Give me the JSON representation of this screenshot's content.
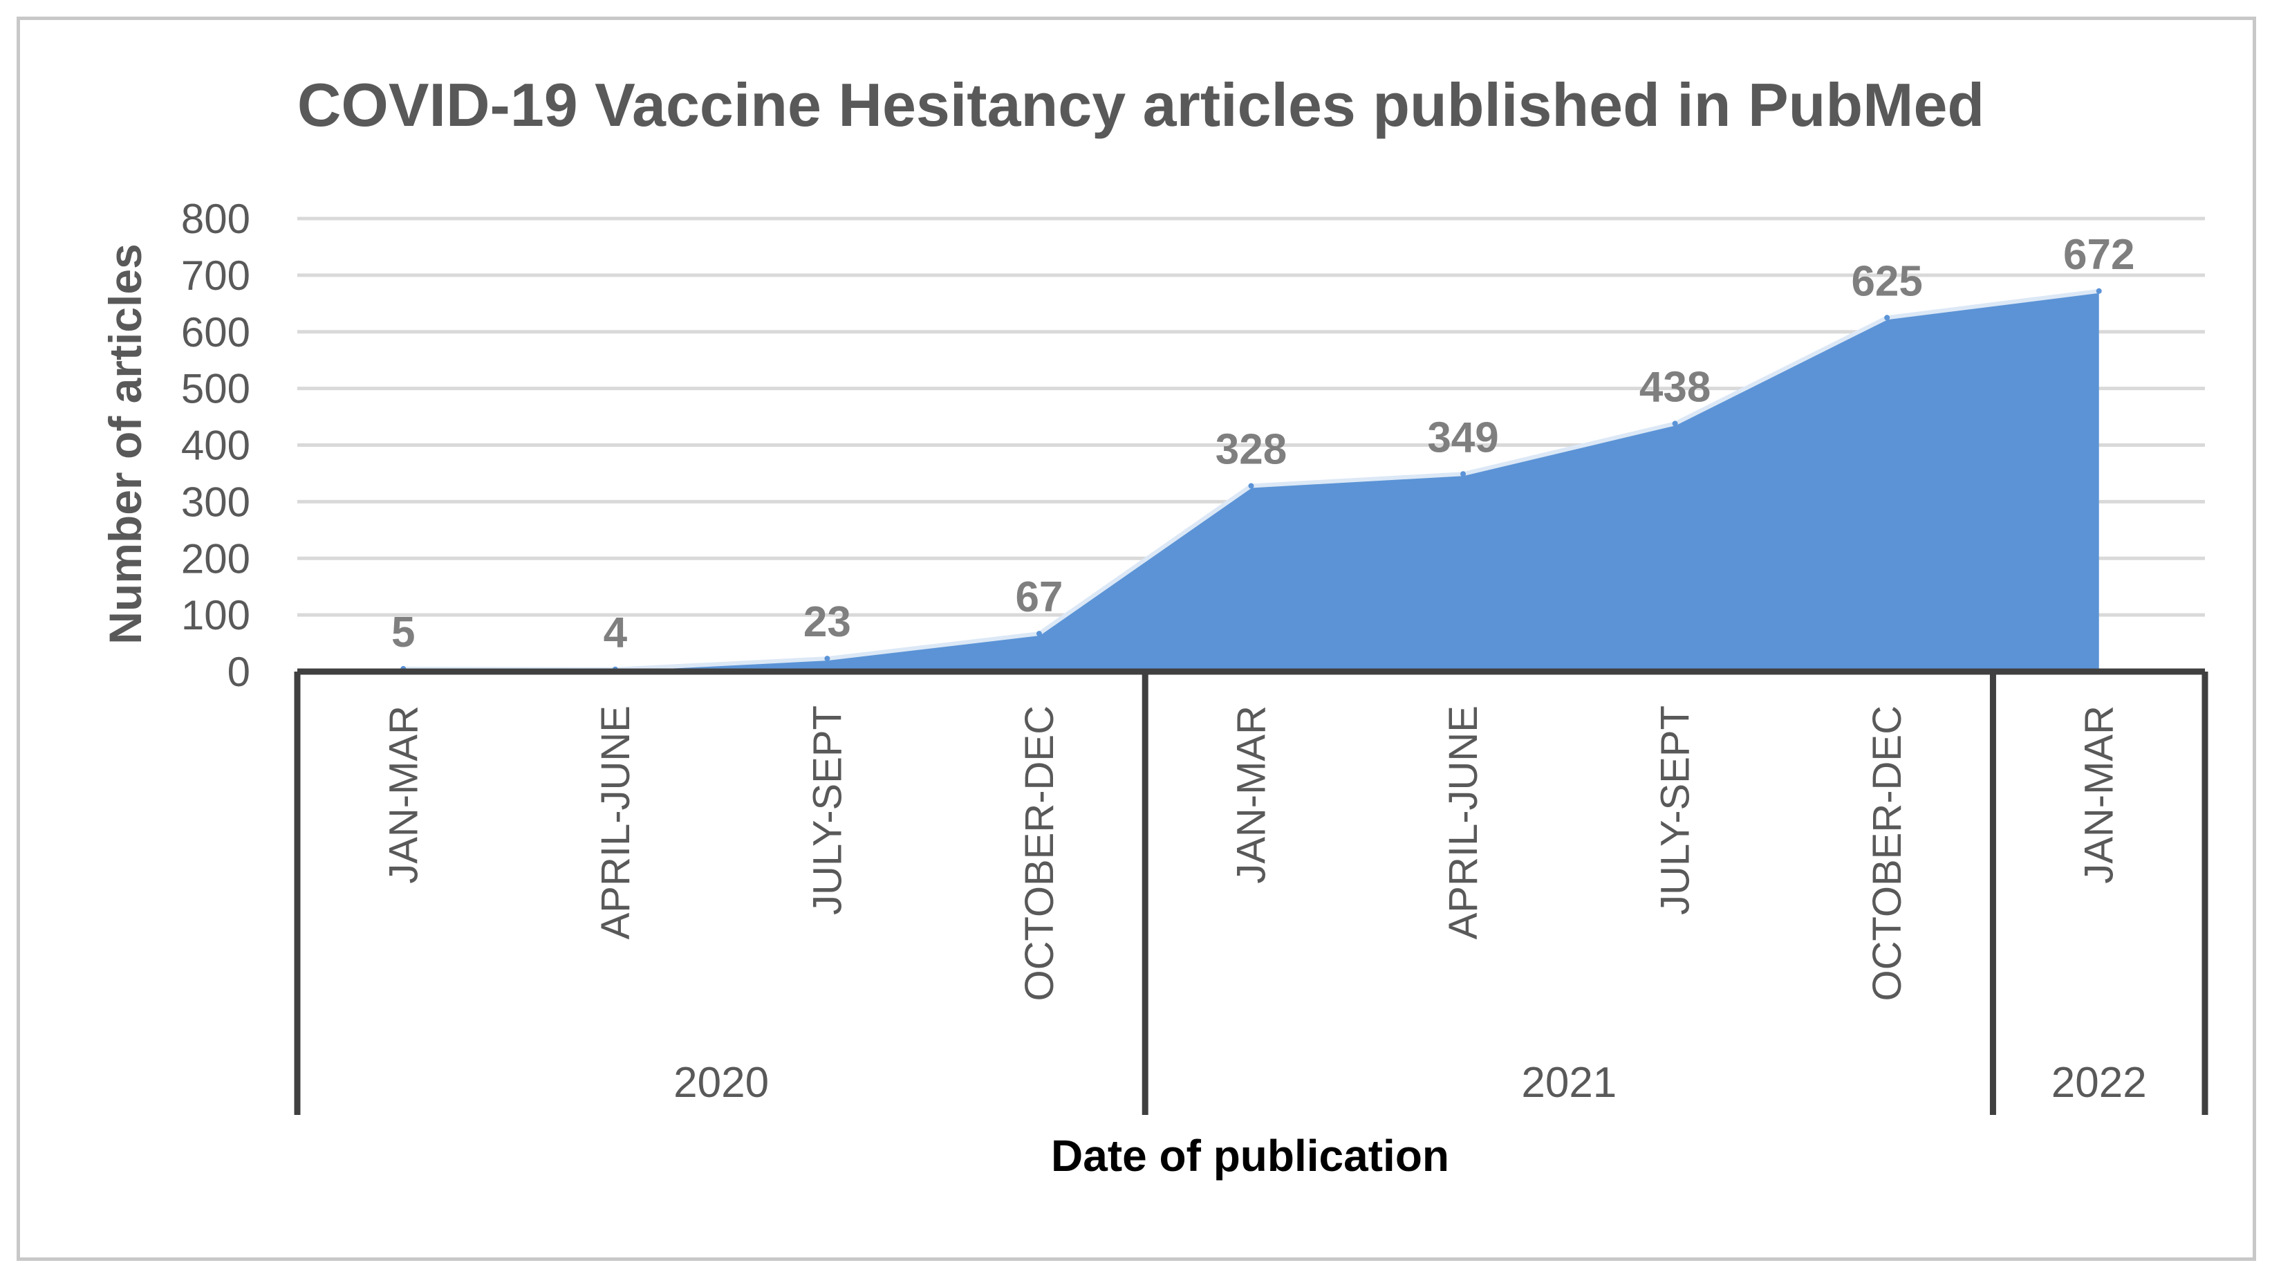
{
  "chart_data": {
    "type": "area",
    "title": "COVID-19 Vaccine Hesitancy articles published in PubMed",
    "xlabel": "Date of publication",
    "ylabel": "Number of articles",
    "categories": [
      "JAN-MAR",
      "APRIL-JUNE",
      "JULY-SEPT",
      "OCTOBER-DEC",
      "JAN-MAR",
      "APRIL-JUNE",
      "JULY-SEPT",
      "OCTOBER-DEC",
      "JAN-MAR"
    ],
    "groups": [
      {
        "label": "2020",
        "count": 4
      },
      {
        "label": "2021",
        "count": 4
      },
      {
        "label": "2022",
        "count": 1
      }
    ],
    "series": [
      {
        "values": [
          5,
          4,
          23,
          67,
          328,
          349,
          438,
          625,
          672
        ]
      }
    ],
    "data_labels": [
      "5",
      "4",
      "23",
      "67",
      "328",
      "349",
      "438",
      "625",
      "672"
    ],
    "ylim": [
      0,
      800
    ],
    "yticks": [
      "0",
      "100",
      "200",
      "300",
      "400",
      "500",
      "600",
      "700",
      "800"
    ],
    "grid": true,
    "legend": "none",
    "colors": {
      "fill": "#5b93d6",
      "edge": "#dce8f6",
      "grid": "#d9d9d9",
      "axis": "#404040"
    }
  }
}
